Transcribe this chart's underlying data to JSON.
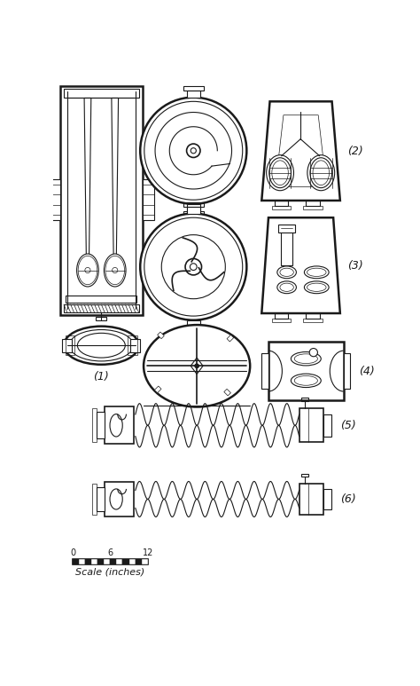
{
  "background_color": "#ffffff",
  "line_color": "#1a1a1a",
  "labels": {
    "1": "(1)",
    "2": "(2)",
    "3": "(3)",
    "4": "(4)",
    "5": "(5)",
    "6": "(6)"
  },
  "scale_text": "Scale (inches)",
  "fig_width": 4.74,
  "fig_height": 7.73,
  "dpi": 100
}
